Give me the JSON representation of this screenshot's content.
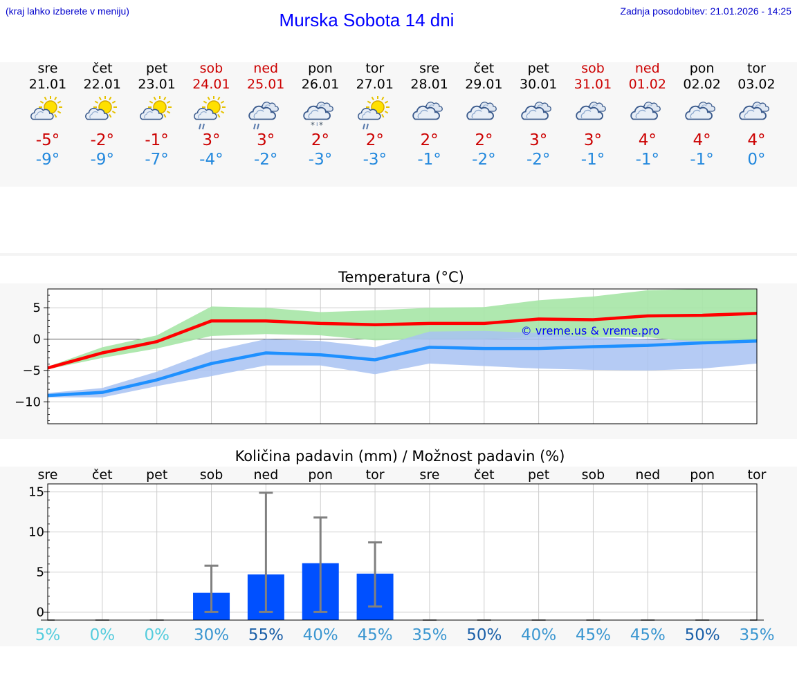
{
  "header": {
    "city_note": "(kraj lahko izberete v meniju)",
    "title": "Murska Sobota 14 dni",
    "updated": "Zadnja posodobitev: 21.01.2026 - 14:25"
  },
  "days": [
    {
      "name": "sre",
      "date": "21.01",
      "weekend": false,
      "icon": "sun-cloud-icon",
      "tmax": "-5°",
      "tmin": "-9°"
    },
    {
      "name": "čet",
      "date": "22.01",
      "weekend": false,
      "icon": "sun-cloud-icon",
      "tmax": "-2°",
      "tmin": "-9°"
    },
    {
      "name": "pet",
      "date": "23.01",
      "weekend": false,
      "icon": "sun-cloud-icon",
      "tmax": "-1°",
      "tmin": "-7°"
    },
    {
      "name": "sob",
      "date": "24.01",
      "weekend": true,
      "icon": "sun-cloud-rain-icon",
      "tmax": "3°",
      "tmin": "-4°"
    },
    {
      "name": "ned",
      "date": "25.01",
      "weekend": true,
      "icon": "cloud-rain-icon",
      "tmax": "3°",
      "tmin": "-2°"
    },
    {
      "name": "pon",
      "date": "26.01",
      "weekend": false,
      "icon": "cloud-snow-icon",
      "tmax": "2°",
      "tmin": "-3°"
    },
    {
      "name": "tor",
      "date": "27.01",
      "weekend": false,
      "icon": "sun-cloud-rain-icon",
      "tmax": "2°",
      "tmin": "-3°"
    },
    {
      "name": "sre",
      "date": "28.01",
      "weekend": false,
      "icon": "cloud-icon",
      "tmax": "2°",
      "tmin": "-1°"
    },
    {
      "name": "čet",
      "date": "29.01",
      "weekend": false,
      "icon": "cloud-icon",
      "tmax": "2°",
      "tmin": "-2°"
    },
    {
      "name": "pet",
      "date": "30.01",
      "weekend": false,
      "icon": "cloud-icon",
      "tmax": "3°",
      "tmin": "-2°"
    },
    {
      "name": "sob",
      "date": "31.01",
      "weekend": true,
      "icon": "cloud-icon",
      "tmax": "3°",
      "tmin": "-1°"
    },
    {
      "name": "ned",
      "date": "01.02",
      "weekend": true,
      "icon": "cloud-icon",
      "tmax": "4°",
      "tmin": "-1°"
    },
    {
      "name": "pon",
      "date": "02.02",
      "weekend": false,
      "icon": "cloud-icon",
      "tmax": "4°",
      "tmin": "-1°"
    },
    {
      "name": "tor",
      "date": "03.02",
      "weekend": false,
      "icon": "cloud-icon",
      "tmax": "4°",
      "tmin": "0°"
    }
  ],
  "colors": {
    "max_line": "#ff0000",
    "max_band": "#a6e6a6",
    "min_line": "#1e90ff",
    "min_band": "#a8c2f2",
    "bar": "#0050ff",
    "error": "#808080"
  },
  "chart_data": [
    {
      "type": "line",
      "title": "Temperatura (°C)",
      "ylim": [
        -13.5,
        8
      ],
      "yticks": [
        5,
        0,
        -5,
        -10
      ],
      "ytick_labels": [
        "5",
        "0",
        "−5",
        "−10"
      ],
      "watermark": "© vreme.us & vreme.pro",
      "x": [
        0,
        1,
        2,
        3,
        4,
        5,
        6,
        7,
        8,
        9,
        10,
        11,
        12,
        13
      ],
      "series": [
        {
          "name": "max",
          "values": [
            -4.6,
            -2.2,
            -0.4,
            2.9,
            2.9,
            2.5,
            2.3,
            2.5,
            2.5,
            3.2,
            3.1,
            3.7,
            3.8,
            4.1
          ],
          "band_low": [
            -4.8,
            -3.0,
            -1.5,
            0.5,
            0.8,
            0.6,
            -0.2,
            0.0,
            0.0,
            0.3,
            0.3,
            0.3,
            -0.6,
            -0.6
          ],
          "band_high": [
            -4.4,
            -1.3,
            0.6,
            5.2,
            5.0,
            4.3,
            4.6,
            5.0,
            5.1,
            6.2,
            6.8,
            7.8,
            8.0,
            7.9
          ]
        },
        {
          "name": "min",
          "values": [
            -9.0,
            -8.5,
            -6.5,
            -3.9,
            -2.2,
            -2.5,
            -3.3,
            -1.3,
            -1.5,
            -1.5,
            -1.2,
            -1.0,
            -0.6,
            -0.3
          ],
          "band_low": [
            -9.3,
            -9.3,
            -7.5,
            -5.9,
            -4.2,
            -4.2,
            -5.6,
            -3.9,
            -4.3,
            -4.7,
            -4.9,
            -5.0,
            -4.7,
            -3.9
          ],
          "band_high": [
            -8.6,
            -7.8,
            -5.2,
            -1.9,
            0.0,
            -0.3,
            -1.3,
            1.2,
            1.3,
            1.0,
            0.3,
            0.0,
            -0.3,
            -0.3
          ]
        }
      ]
    },
    {
      "type": "bar",
      "title": "Količina padavin (mm) / Možnost padavin (%)",
      "ylim": [
        -1,
        16
      ],
      "yticks": [
        15,
        10,
        5,
        0
      ],
      "categories": [
        "sre",
        "čet",
        "pet",
        "sob",
        "ned",
        "pon",
        "tor",
        "sre",
        "čet",
        "pet",
        "sob",
        "ned",
        "pon",
        "tor"
      ],
      "values": [
        0,
        0,
        0,
        2.4,
        4.7,
        6.1,
        4.8,
        0,
        0,
        0,
        0,
        0,
        0,
        0
      ],
      "error_low": [
        0,
        0,
        0,
        0,
        0,
        0,
        0.7,
        0,
        0,
        0,
        0,
        0,
        0,
        0
      ],
      "error_high": [
        0,
        0,
        0,
        5.8,
        14.9,
        11.8,
        8.7,
        0,
        0,
        0,
        0,
        0,
        0,
        0
      ],
      "probability": [
        "5%",
        "0%",
        "0%",
        "30%",
        "55%",
        "40%",
        "45%",
        "35%",
        "50%",
        "40%",
        "45%",
        "45%",
        "50%",
        "35%"
      ],
      "probability_values": [
        5,
        0,
        0,
        30,
        55,
        40,
        45,
        35,
        50,
        40,
        45,
        45,
        50,
        35
      ]
    }
  ]
}
